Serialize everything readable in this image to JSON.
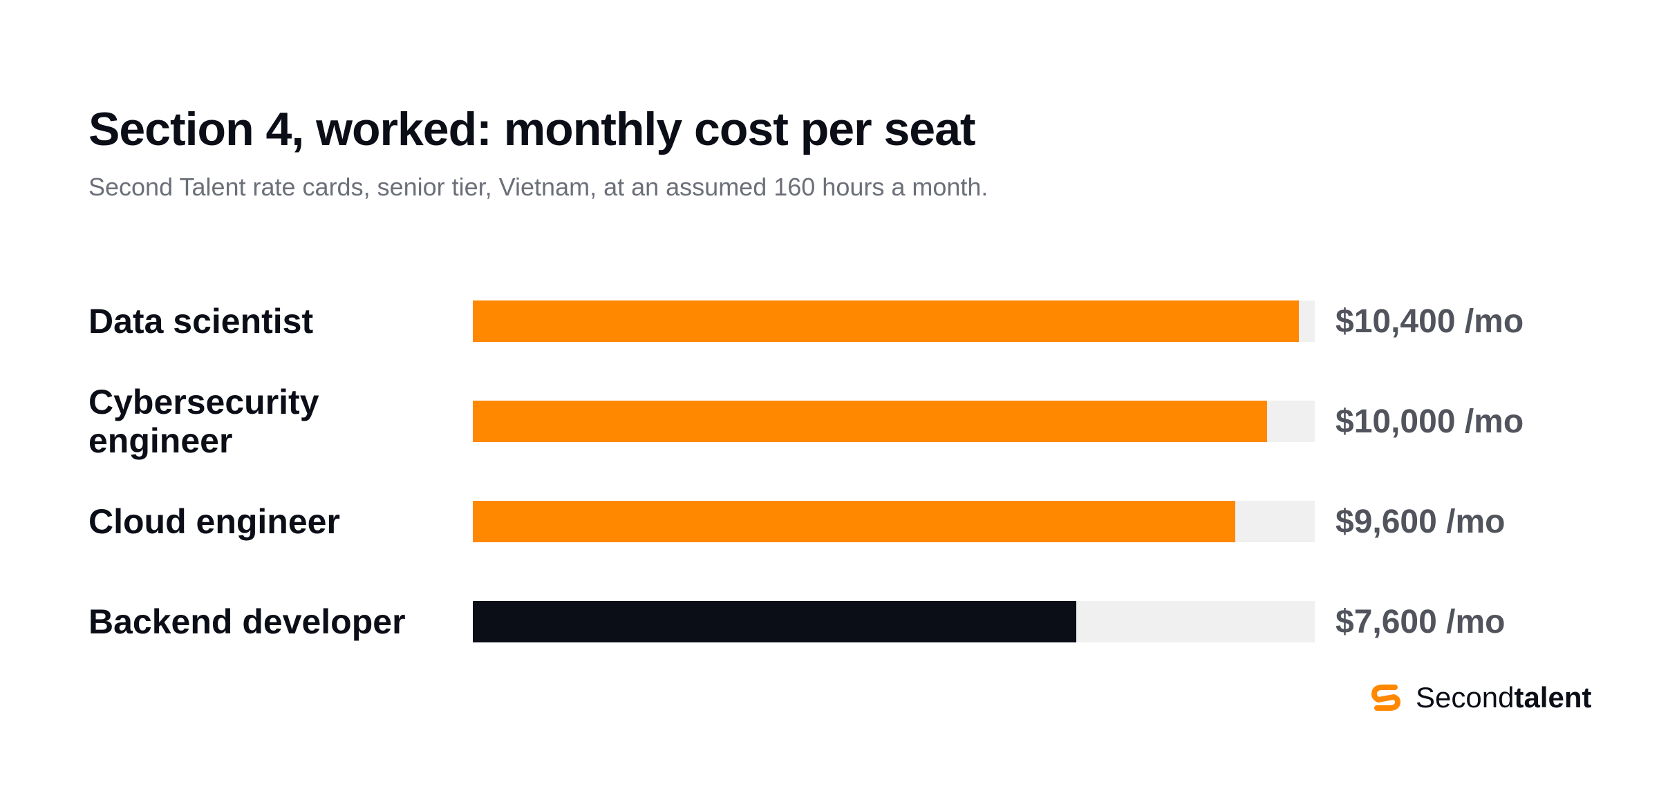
{
  "chart_data": {
    "type": "bar",
    "orientation": "horizontal",
    "title": "Section 4, worked: monthly cost per seat",
    "subtitle": "Second Talent rate cards, senior tier, Vietnam, at an assumed 160 hours a month.",
    "categories": [
      "Data scientist",
      "Cybersecurity engineer",
      "Cloud engineer",
      "Backend developer"
    ],
    "values": [
      10400,
      10000,
      9600,
      7600
    ],
    "value_labels": [
      "$10,400 /mo",
      "$10,000 /mo",
      "$9,600 /mo",
      "$7,600 /mo"
    ],
    "xlim": [
      0,
      10600
    ],
    "bar_colors": [
      "#ff8800",
      "#ff8800",
      "#ff8800",
      "#0b0e17"
    ],
    "track_color": "#eff0ef",
    "grid": false
  },
  "brand": {
    "logo_icon": "secondtalent-s-icon",
    "name_regular": "Second",
    "name_bold": "talent",
    "accent": "#ff8800"
  }
}
